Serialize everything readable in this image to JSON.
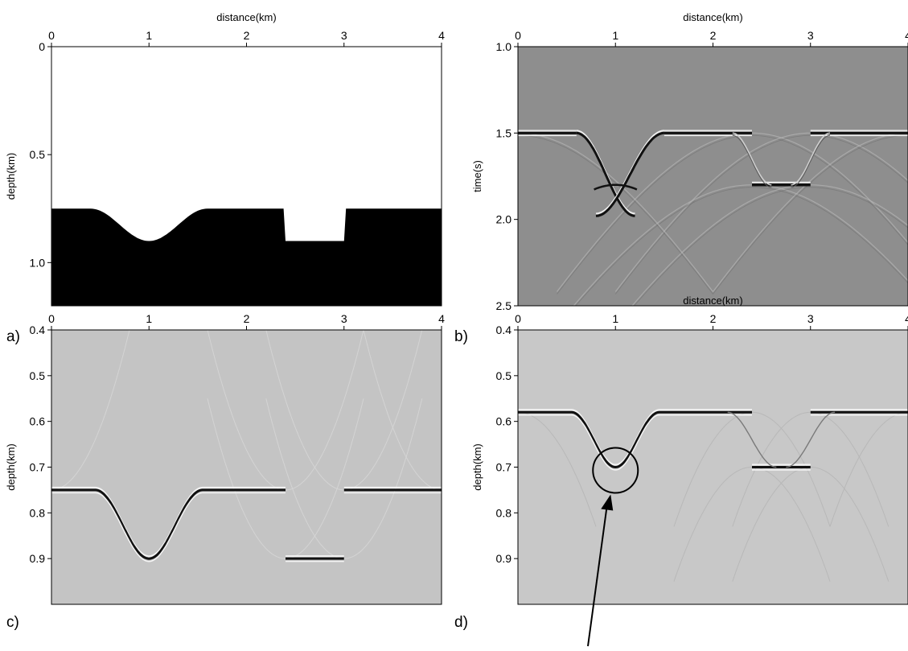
{
  "chart_data": [
    {
      "panel": "a)",
      "type": "heatmap",
      "description_kind": "velocity model (binary image)",
      "xlabel": "distance(km)",
      "ylabel": "depth(km)",
      "xlim": [
        0,
        4
      ],
      "ylim": [
        0,
        1.2
      ],
      "y_inverted": true,
      "x_ticks": [
        "0",
        "1",
        "2",
        "3",
        "4"
      ],
      "y_ticks": [
        "0",
        "0.5",
        "1.0"
      ],
      "background_color": "#ffffff",
      "fill_color": "#000000",
      "interface": {
        "flat_depth": 0.75,
        "dip_center_x": 1.0,
        "dip_bottom_depth": 0.9,
        "dip_range_x": [
          0.5,
          1.6
        ],
        "step": {
          "x_range": [
            2.4,
            3.0
          ],
          "depth": 0.9
        }
      }
    },
    {
      "panel": "b)",
      "type": "heatmap",
      "description_kind": "seismic shot record",
      "xlabel": "distance(km)",
      "ylabel": "time(s)",
      "xlim": [
        0,
        4
      ],
      "ylim": [
        1.0,
        2.5
      ],
      "y_inverted": true,
      "x_ticks": [
        "0",
        "1",
        "2",
        "3",
        "4"
      ],
      "y_ticks": [
        "1.0",
        "1.5",
        "2.0",
        "2.5"
      ],
      "background_color": "#8e8e8e",
      "events": {
        "flat_time": 1.5,
        "hyperbola_apex": {
          "x": 1.0,
          "time": 1.8
        },
        "step_reflection": {
          "x_range": [
            2.4,
            3.0
          ],
          "time": 1.8
        }
      }
    },
    {
      "panel": "c)",
      "type": "heatmap",
      "description_kind": "migrated depth image",
      "xlabel": "distance(km)",
      "ylabel": "depth(km)",
      "xlim": [
        0,
        4
      ],
      "ylim": [
        0.4,
        1.0
      ],
      "y_inverted": true,
      "x_ticks": [
        "0",
        "1",
        "2",
        "3",
        "4"
      ],
      "y_ticks": [
        "0.4",
        "0.5",
        "0.6",
        "0.7",
        "0.8",
        "0.9"
      ],
      "background_color": "#c4c4c4",
      "reflector": {
        "flat_depth": 0.75,
        "dip_bottom_depth": 0.9,
        "dip_center_x": 1.0,
        "step": {
          "x_range": [
            2.4,
            3.0
          ],
          "depth": 0.9
        }
      }
    },
    {
      "panel": "d)",
      "type": "heatmap",
      "description_kind": "migrated depth image",
      "xlabel": "distance(km)",
      "ylabel": "depth(km)",
      "xlim": [
        0,
        4
      ],
      "ylim": [
        0.4,
        1.0
      ],
      "y_inverted": true,
      "x_ticks": [
        "0",
        "1",
        "2",
        "3",
        "4"
      ],
      "y_ticks": [
        "0.4",
        "0.5",
        "0.6",
        "0.7",
        "0.8",
        "0.9"
      ],
      "background_color": "#c8c8c8",
      "reflector": {
        "flat_depth": 0.58,
        "dip_bottom_depth": 0.7,
        "dip_center_x": 1.0,
        "step": {
          "x_range": [
            2.4,
            3.0
          ],
          "depth": 0.7
        }
      },
      "annotation": {
        "type": "circle-and-arrow",
        "target_x": 1.0,
        "target_depth": 0.7
      }
    }
  ]
}
